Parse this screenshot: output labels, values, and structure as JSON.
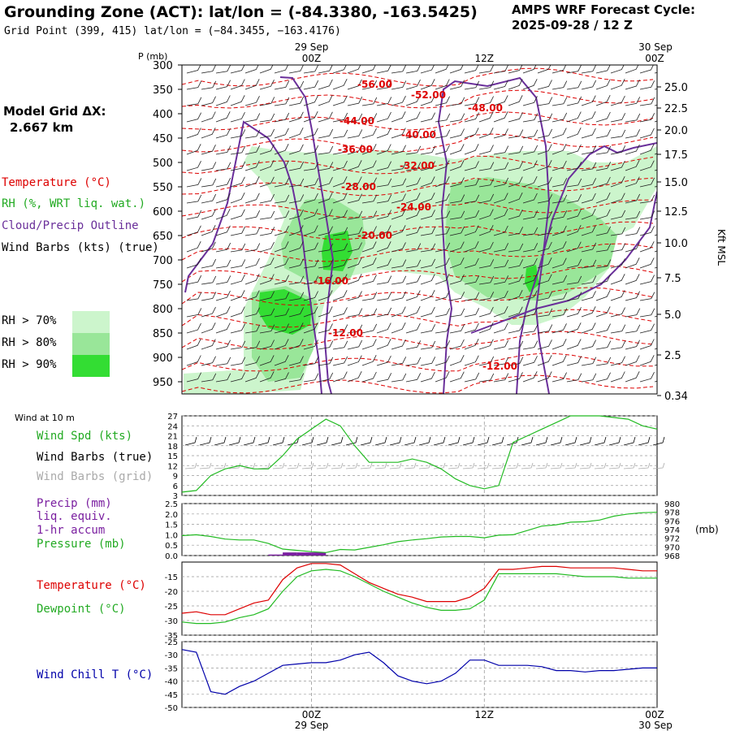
{
  "header": {
    "title": "Grounding Zone (ACT):  lat/lon = (-84.3380, -163.5425)",
    "grid_point": "Grid Point (399, 415) lat/lon = (−84.3455, −163.4176)",
    "cycle_label": "AMPS WRF Forecast Cycle:",
    "cycle_value": "2025-09-28 / 12  Z"
  },
  "model": {
    "label": "Model Grid ΔX:",
    "value": "2.667 km"
  },
  "legend_top": {
    "temperature": "Temperature (°C)",
    "rh": "RH (%, WRT liq. wat.)",
    "cloud": "Cloud/Precip Outline",
    "wind": "Wind Barbs (kts) (true)",
    "rh70": "RH > 70%",
    "rh80": "RH > 80%",
    "rh90": "RH > 90%"
  },
  "colors": {
    "temp": "#dd0000",
    "rh70": "#ccf5cc",
    "rh80": "#99e699",
    "rh90": "#33dd33",
    "cloud": "#6a2f9a",
    "green_line": "#22bb22",
    "red_line": "#dd0000",
    "blue_line": "#0000aa",
    "precip": "#7a1fa0",
    "grid": "#999999",
    "gray_barb": "#aaaaaa"
  },
  "time_axis": {
    "top_date1": "29 Sep",
    "top_date2": "30 Sep",
    "ticks": [
      "00Z",
      "12Z",
      "00Z"
    ],
    "bottom_date1": "29 Sep",
    "bottom_date2": "30 Sep"
  },
  "chart_data": [
    {
      "type": "line",
      "name": "cross-section",
      "ylabel_left": "P (mb)",
      "ylabel_right": "Kft MSL",
      "pressure_ticks": [
        "300",
        "350",
        "400",
        "450",
        "500",
        "550",
        "600",
        "650",
        "700",
        "750",
        "800",
        "850",
        "900",
        "950"
      ],
      "height_ticks": [
        "25.0",
        "22.5",
        "20.0",
        "17.5",
        "15.0",
        "12.5",
        "10.0",
        "7.5",
        "5.0",
        "2.5",
        "0.34"
      ],
      "temperature_labels": [
        "-56.00",
        "-52.00",
        "-48.00",
        "-44.00",
        "-40.00",
        "-36.00",
        "-32.00",
        "-28.00",
        "-24.00",
        "-20.00",
        "-16.00",
        "-12.00",
        "-12.00"
      ],
      "ylim": [
        975,
        300
      ],
      "x_range_hours": [
        -9,
        24
      ]
    },
    {
      "type": "line",
      "name": "wind-speed",
      "header": "Wind at 10 m",
      "labels": {
        "speed": "Wind Spd (kts)",
        "barbs_true": "Wind Barbs (true)",
        "barbs_grid": "Wind Barbs (grid)"
      },
      "y_ticks": [
        "27",
        "24",
        "21",
        "18",
        "15",
        "12",
        "9",
        "6",
        "3"
      ],
      "ylim": [
        3,
        27
      ],
      "x": [
        -9,
        -8,
        -7,
        -6,
        -5,
        -4,
        -3,
        -2,
        -1,
        0,
        1,
        2,
        3,
        4,
        5,
        6,
        7,
        8,
        9,
        10,
        11,
        12,
        13,
        14,
        15,
        16,
        17,
        18,
        19,
        20,
        21,
        22,
        23,
        24
      ],
      "values": [
        4,
        4.5,
        9,
        11,
        12,
        11,
        11,
        15,
        20,
        23,
        26,
        24,
        18,
        13,
        13,
        13,
        14,
        13,
        11,
        8,
        6,
        5,
        6,
        19,
        21,
        23,
        25,
        27,
        27,
        27,
        26.5,
        26,
        24,
        23
      ]
    },
    {
      "type": "bar",
      "name": "precip-pressure",
      "labels": {
        "precip": "Precip (mm)",
        "liq": "liq. equiv.",
        "accum": "1-hr accum",
        "pressure": "Pressure (mb)"
      },
      "y_ticks_left": [
        "2.5",
        "2.0",
        "1.5",
        "1.0",
        "0.5",
        "0.0"
      ],
      "y_ticks_right": [
        "980",
        "978",
        "976",
        "974",
        "972",
        "970",
        "968"
      ],
      "right_unit": "(mb)",
      "ylim": [
        0,
        2.5
      ],
      "pressure_ylim": [
        968,
        980
      ],
      "precip_x": [
        -3,
        -2,
        -1,
        0
      ],
      "precip_values": [
        0.05,
        0.15,
        0.15,
        0.15
      ],
      "x": [
        -9,
        -8,
        -7,
        -6,
        -5,
        -4,
        -3,
        -2,
        -1,
        0,
        1,
        2,
        3,
        4,
        5,
        6,
        7,
        8,
        9,
        10,
        11,
        12,
        13,
        14,
        15,
        16,
        17,
        18,
        19,
        20,
        21,
        22,
        23,
        24
      ],
      "pressure": [
        972.6,
        972.8,
        972.4,
        971.8,
        971.6,
        971.6,
        970.8,
        969.5,
        969.2,
        968.9,
        968.7,
        969.4,
        969.3,
        969.9,
        970.5,
        971.2,
        971.6,
        971.9,
        972.3,
        972.4,
        972.4,
        972.1,
        972.7,
        972.8,
        973.8,
        974.8,
        975.1,
        975.7,
        975.8,
        976.2,
        977.1,
        977.6,
        977.9,
        978.0
      ]
    },
    {
      "type": "line",
      "name": "temperature-dewpoint",
      "labels": {
        "temp": "Temperature (°C)",
        "dew": "Dewpoint (°C)"
      },
      "y_ticks": [
        "-15",
        "-20",
        "-25",
        "-30",
        "-35"
      ],
      "ylim": [
        -35,
        -10
      ],
      "x": [
        -9,
        -8,
        -7,
        -6,
        -5,
        -4,
        -3,
        -2,
        -1,
        0,
        1,
        2,
        3,
        4,
        5,
        6,
        7,
        8,
        9,
        10,
        11,
        12,
        13,
        14,
        15,
        16,
        17,
        18,
        19,
        20,
        21,
        22,
        23,
        24
      ],
      "temperature": [
        -27.5,
        -27,
        -28,
        -28,
        -26,
        -24,
        -23,
        -16,
        -12,
        -10.5,
        -10.5,
        -11,
        -14,
        -17,
        -19,
        -21,
        -22,
        -23.5,
        -23.5,
        -23.5,
        -22,
        -19,
        -12.5,
        -12.5,
        -12,
        -11.5,
        -11.5,
        -12,
        -12,
        -12,
        -12,
        -12.5,
        -13,
        -13
      ],
      "dewpoint": [
        -30.5,
        -31,
        -31,
        -30.5,
        -29,
        -28,
        -26,
        -20,
        -15,
        -13,
        -12.5,
        -13,
        -15,
        -17.5,
        -20,
        -22,
        -24,
        -25.5,
        -26.5,
        -26.5,
        -26,
        -23,
        -14,
        -14,
        -14,
        -14,
        -14,
        -14.5,
        -15,
        -15,
        -15,
        -15.5,
        -15.5,
        -15.5
      ]
    },
    {
      "type": "line",
      "name": "wind-chill",
      "labels": {
        "chill": "Wind Chill T (°C)"
      },
      "y_ticks": [
        "-25",
        "-30",
        "-35",
        "-40",
        "-45",
        "-50"
      ],
      "ylim": [
        -50,
        -25
      ],
      "x": [
        -9,
        -8,
        -7,
        -6,
        -5,
        -4,
        -3,
        -2,
        -1,
        0,
        1,
        2,
        3,
        4,
        5,
        6,
        7,
        8,
        9,
        10,
        11,
        12,
        13,
        14,
        15,
        16,
        17,
        18,
        19,
        20,
        21,
        22,
        23,
        24
      ],
      "values": [
        -28,
        -29,
        -44,
        -45,
        -42,
        -40,
        -37,
        -34,
        -33.5,
        -33,
        -33,
        -32,
        -30,
        -29,
        -33,
        -38,
        -40,
        -41,
        -40,
        -37,
        -32,
        -32,
        -34,
        -34,
        -34,
        -34.5,
        -36,
        -36,
        -36.5,
        -36,
        -36,
        -35.5,
        -35,
        -35
      ]
    }
  ]
}
